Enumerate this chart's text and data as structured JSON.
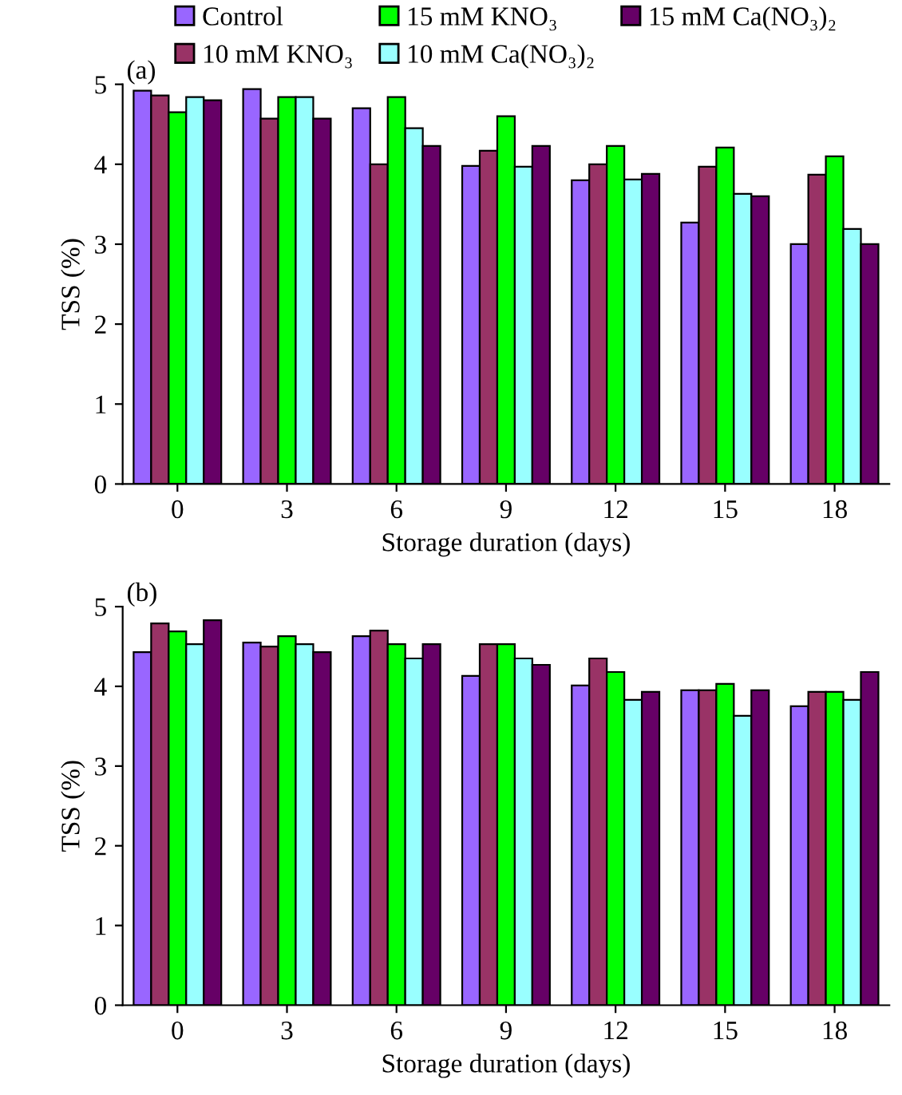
{
  "chart_data": [
    {
      "type": "bar",
      "annotations": [
        "(a)"
      ],
      "xlabel": "Storage duration (days)",
      "ylabel": "TSS (%)",
      "categories": [
        "0",
        "3",
        "6",
        "9",
        "12",
        "15",
        "18"
      ],
      "ylim": [
        0,
        5
      ],
      "yticks": [
        0,
        1,
        2,
        3,
        4,
        5
      ],
      "grid": false,
      "legend": "top",
      "series": [
        {
          "name": "Control",
          "color": "#9966ff",
          "values": [
            4.92,
            4.94,
            4.7,
            3.98,
            3.8,
            3.27,
            3.0
          ]
        },
        {
          "name": "10 mM KNO₃",
          "color": "#993366",
          "values": [
            4.86,
            4.57,
            4.0,
            4.17,
            4.0,
            3.97,
            3.87
          ]
        },
        {
          "name": "15 mM KNO₃",
          "color": "#00ff00",
          "values": [
            4.65,
            4.84,
            4.84,
            4.6,
            4.23,
            4.21,
            4.1
          ]
        },
        {
          "name": "10 mM Ca(NO₃)₂",
          "color": "#99ffff",
          "values": [
            4.84,
            4.84,
            4.45,
            3.97,
            3.81,
            3.63,
            3.19
          ]
        },
        {
          "name": "15 mM Ca(NO₃)₂",
          "color": "#660066",
          "values": [
            4.8,
            4.57,
            4.23,
            4.23,
            3.88,
            3.6,
            3.0
          ]
        }
      ]
    },
    {
      "type": "bar",
      "annotations": [
        "(b)"
      ],
      "xlabel": "Storage duration (days)",
      "ylabel": "TSS (%)",
      "categories": [
        "0",
        "3",
        "6",
        "9",
        "12",
        "15",
        "18"
      ],
      "ylim": [
        0,
        5
      ],
      "yticks": [
        0,
        1,
        2,
        3,
        4,
        5
      ],
      "grid": false,
      "series": [
        {
          "color": "#9966ff",
          "values": [
            4.43,
            4.55,
            4.63,
            4.13,
            4.01,
            3.95,
            3.75
          ]
        },
        {
          "color": "#993366",
          "values": [
            4.79,
            4.5,
            4.7,
            4.53,
            4.35,
            3.95,
            3.93
          ]
        },
        {
          "color": "#00ff00",
          "values": [
            4.69,
            4.63,
            4.53,
            4.53,
            4.18,
            4.03,
            3.93
          ]
        },
        {
          "color": "#99ffff",
          "values": [
            4.53,
            4.53,
            4.35,
            4.35,
            3.83,
            3.63,
            3.83
          ]
        },
        {
          "color": "#660066",
          "values": [
            4.83,
            4.43,
            4.53,
            4.27,
            3.93,
            3.95,
            4.18
          ]
        }
      ]
    }
  ]
}
